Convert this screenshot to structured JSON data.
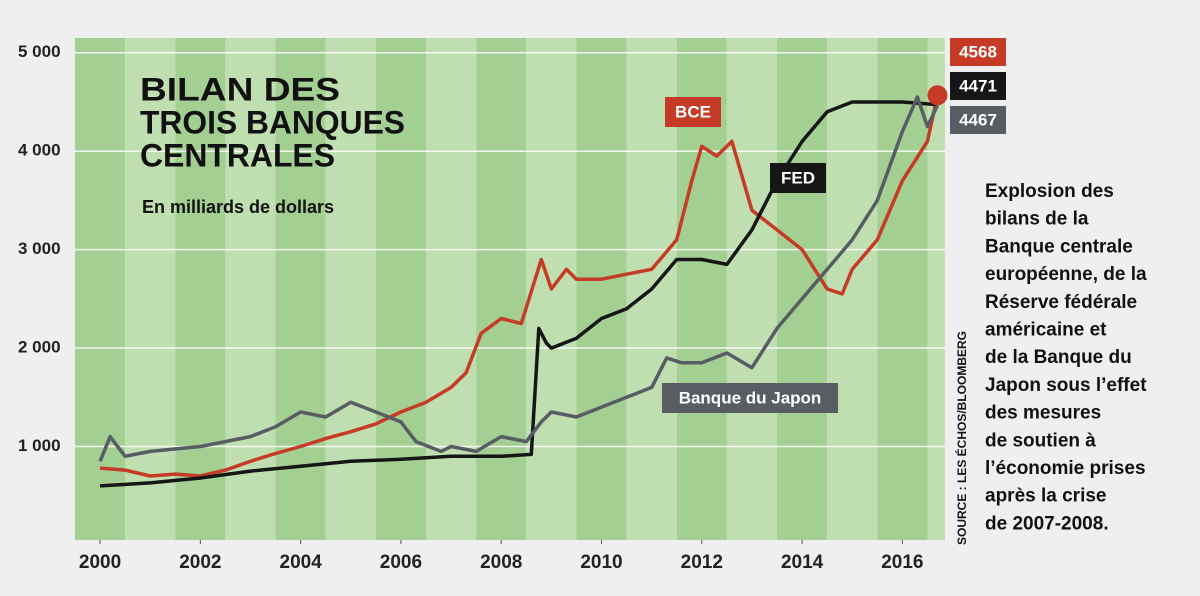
{
  "chart_data": {
    "type": "line",
    "title": [
      "BILAN DES",
      "TROIS BANQUES",
      "CENTRALES"
    ],
    "subtitle": "En milliards de dollars",
    "source": "SOURCE : LES ÉCHOS/BLOOMBERG",
    "caption": [
      "Explosion des",
      "bilans de la",
      "Banque centrale",
      "européenne, de la",
      "Réserve fédérale",
      "américaine et",
      "de la Banque du",
      "Japon sous l’effet",
      "des mesures",
      "de soutien à",
      "l’économie prises",
      "après la crise",
      "de 2007-2008."
    ],
    "xlim": [
      1999.5,
      2016.85
    ],
    "xticks": [
      2000,
      2002,
      2004,
      2006,
      2008,
      2010,
      2012,
      2014,
      2016
    ],
    "ylim": [
      50,
      5150
    ],
    "yticks": [
      {
        "value": 1000,
        "label": "1 000"
      },
      {
        "value": 2000,
        "label": "2 000"
      },
      {
        "value": 3000,
        "label": "3 000"
      },
      {
        "value": 4000,
        "label": "4 000"
      },
      {
        "value": 5000,
        "label": "5 000"
      }
    ],
    "grid": true,
    "series": [
      {
        "name": "BCE",
        "color": "#c63b26",
        "x": [
          2000,
          2000.5,
          2001,
          2001.5,
          2002,
          2002.5,
          2003,
          2003.5,
          2004,
          2004.5,
          2005,
          2005.5,
          2006,
          2006.5,
          2007,
          2007.3,
          2007.6,
          2008,
          2008.4,
          2008.8,
          2009,
          2009.3,
          2009.5,
          2010,
          2010.5,
          2011,
          2011.5,
          2011.8,
          2012,
          2012.3,
          2012.6,
          2013,
          2013.5,
          2014,
          2014.5,
          2014.8,
          2015,
          2015.5,
          2016,
          2016.5,
          2016.7
        ],
        "values": [
          780,
          760,
          700,
          720,
          700,
          760,
          850,
          930,
          1000,
          1080,
          1150,
          1230,
          1350,
          1450,
          1600,
          1750,
          2150,
          2300,
          2250,
          2900,
          2600,
          2800,
          2700,
          2700,
          2750,
          2800,
          3100,
          3700,
          4050,
          3950,
          4100,
          3400,
          3200,
          3000,
          2600,
          2550,
          2800,
          3100,
          3700,
          4100,
          4568
        ]
      },
      {
        "name": "FED",
        "color": "#161616",
        "x": [
          2000,
          2001,
          2002,
          2003,
          2004,
          2005,
          2006,
          2007,
          2008,
          2008.6,
          2008.75,
          2008.9,
          2009,
          2009.5,
          2010,
          2010.5,
          2011,
          2011.5,
          2012,
          2012.5,
          2013,
          2013.5,
          2014,
          2014.5,
          2015,
          2015.5,
          2016,
          2016.5,
          2016.7
        ],
        "values": [
          600,
          630,
          680,
          750,
          800,
          850,
          870,
          900,
          900,
          920,
          2200,
          2050,
          2000,
          2100,
          2300,
          2400,
          2600,
          2900,
          2900,
          2850,
          3200,
          3700,
          4100,
          4400,
          4500,
          4500,
          4500,
          4480,
          4471
        ]
      },
      {
        "name": "Banque du Japon",
        "color": "#585d64",
        "x": [
          2000,
          2000.2,
          2000.5,
          2001,
          2002,
          2003,
          2003.5,
          2004,
          2004.5,
          2005,
          2005.5,
          2006,
          2006.3,
          2006.8,
          2007,
          2007.5,
          2008,
          2008.5,
          2008.8,
          2009,
          2009.5,
          2010,
          2010.5,
          2011,
          2011.3,
          2011.6,
          2012,
          2012.5,
          2013,
          2013.5,
          2014,
          2014.5,
          2015,
          2015.5,
          2016,
          2016.3,
          2016.5,
          2016.7
        ],
        "values": [
          850,
          1100,
          900,
          950,
          1000,
          1100,
          1200,
          1350,
          1300,
          1450,
          1350,
          1250,
          1050,
          950,
          1000,
          950,
          1100,
          1050,
          1250,
          1350,
          1300,
          1400,
          1500,
          1600,
          1900,
          1850,
          1850,
          1950,
          1800,
          2200,
          2500,
          2800,
          3100,
          3500,
          4200,
          4550,
          4250,
          4467
        ]
      }
    ]
  }
}
